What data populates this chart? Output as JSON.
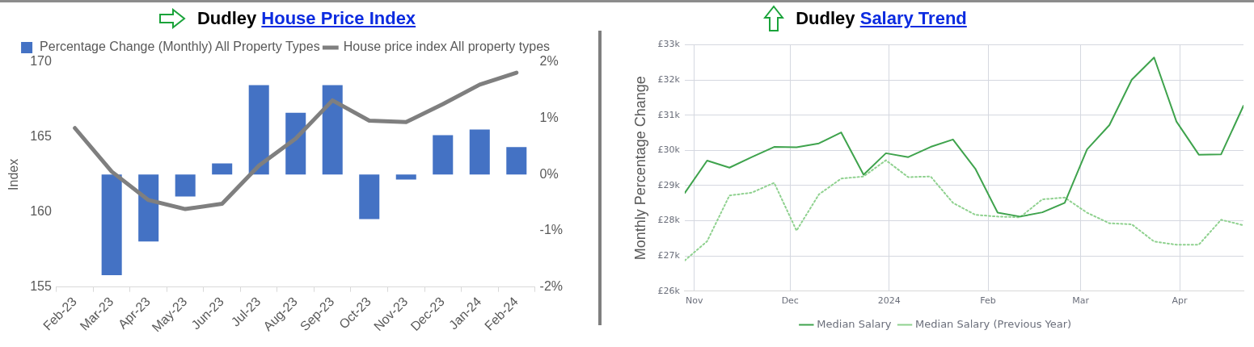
{
  "chart_data": [
    {
      "type": "bar",
      "title": "Dudley House Price Index",
      "ylabel": "Index",
      "categories": [
        "Feb-23",
        "Mar-23",
        "Apr-23",
        "May-23",
        "Jun-23",
        "Jul-23",
        "Aug-23",
        "Sep-23",
        "Oct-23",
        "Nov-23",
        "Dec-23",
        "Jan-24",
        "Feb-24"
      ],
      "series": [
        {
          "name": "Percentage Change (Monthly) All Property Types",
          "axis": "y2",
          "color": "#4472c4",
          "values": [
            null,
            -1.79,
            -1.19,
            -0.39,
            0.2,
            1.59,
            1.1,
            1.59,
            -0.79,
            -0.09,
            0.7,
            0.8,
            0.49
          ]
        },
        {
          "name": "House price index All property types",
          "type": "line",
          "color": "#7f7f7f",
          "values": [
            165.6,
            162.7,
            160.8,
            160.2,
            160.55,
            163.1,
            164.9,
            167.45,
            166.1,
            166.0,
            167.2,
            168.5,
            169.3
          ]
        }
      ],
      "ylim": [
        155,
        170
      ],
      "yticks": [
        155,
        160,
        165,
        170
      ],
      "y2lim": [
        -2,
        2
      ],
      "y2ticks": [
        {
          "value": -2,
          "label": "-2%"
        },
        {
          "value": -1,
          "label": "-1%"
        },
        {
          "value": 0,
          "label": "0%"
        },
        {
          "value": 1,
          "label": "1%"
        },
        {
          "value": 2,
          "label": "2%"
        }
      ],
      "grid": false,
      "legend": "top"
    },
    {
      "type": "line",
      "title": "Dudley Salary Trend",
      "ylabel": "Monthly Percentage Change",
      "x": [
        "2023-10-29",
        "2023-11-05",
        "2023-11-12",
        "2023-11-19",
        "2023-11-26",
        "2023-12-03",
        "2023-12-10",
        "2023-12-17",
        "2023-12-24",
        "2023-12-31",
        "2024-01-07",
        "2024-01-14",
        "2024-01-21",
        "2024-01-28",
        "2024-02-04",
        "2024-02-11",
        "2024-02-18",
        "2024-02-25",
        "2024-03-03",
        "2024-03-10",
        "2024-03-17",
        "2024-03-24",
        "2024-03-31",
        "2024-04-07",
        "2024-04-14",
        "2024-04-21"
      ],
      "series": [
        {
          "name": "Median Salary",
          "color": "#3fa34d",
          "line_style": "solid",
          "values": [
            28.79,
            29.71,
            29.51,
            29.81,
            30.1,
            30.09,
            30.2,
            30.51,
            29.31,
            29.92,
            29.81,
            30.1,
            30.31,
            29.48,
            28.23,
            28.12,
            28.24,
            28.51,
            30.03,
            30.72,
            32.01,
            32.64,
            30.82,
            29.88,
            29.89,
            31.27
          ]
        },
        {
          "name": "Median Salary (Previous Year)",
          "color": "#8fd18f",
          "line_style": "dotted",
          "values": [
            26.87,
            27.42,
            28.72,
            28.8,
            29.08,
            27.72,
            28.75,
            29.2,
            29.26,
            29.72,
            29.24,
            29.26,
            28.51,
            28.17,
            28.12,
            28.1,
            28.61,
            28.66,
            28.23,
            27.93,
            27.9,
            27.41,
            27.32,
            27.32,
            28.03,
            27.87
          ]
        }
      ],
      "xlim": [
        "2023-10-29",
        "2024-04-21"
      ],
      "xticks": [
        {
          "value": "2023-11-01",
          "label": "Nov"
        },
        {
          "value": "2023-12-01",
          "label": "Dec"
        },
        {
          "value": "2024-01-01",
          "label": "2024"
        },
        {
          "value": "2024-02-01",
          "label": "Feb"
        },
        {
          "value": "2024-03-01",
          "label": "Mar"
        },
        {
          "value": "2024-04-01",
          "label": "Apr"
        }
      ],
      "ylim": [
        26,
        33
      ],
      "yticks": [
        {
          "value": 26,
          "label": "£26k"
        },
        {
          "value": 27,
          "label": "£27k"
        },
        {
          "value": 28,
          "label": "£28k"
        },
        {
          "value": 29,
          "label": "£29k"
        },
        {
          "value": 30,
          "label": "£30k"
        },
        {
          "value": 31,
          "label": "£31k"
        },
        {
          "value": 32,
          "label": "£32k"
        },
        {
          "value": 33,
          "label": "£33k"
        }
      ],
      "grid": true,
      "legend": "bottom"
    }
  ]
}
